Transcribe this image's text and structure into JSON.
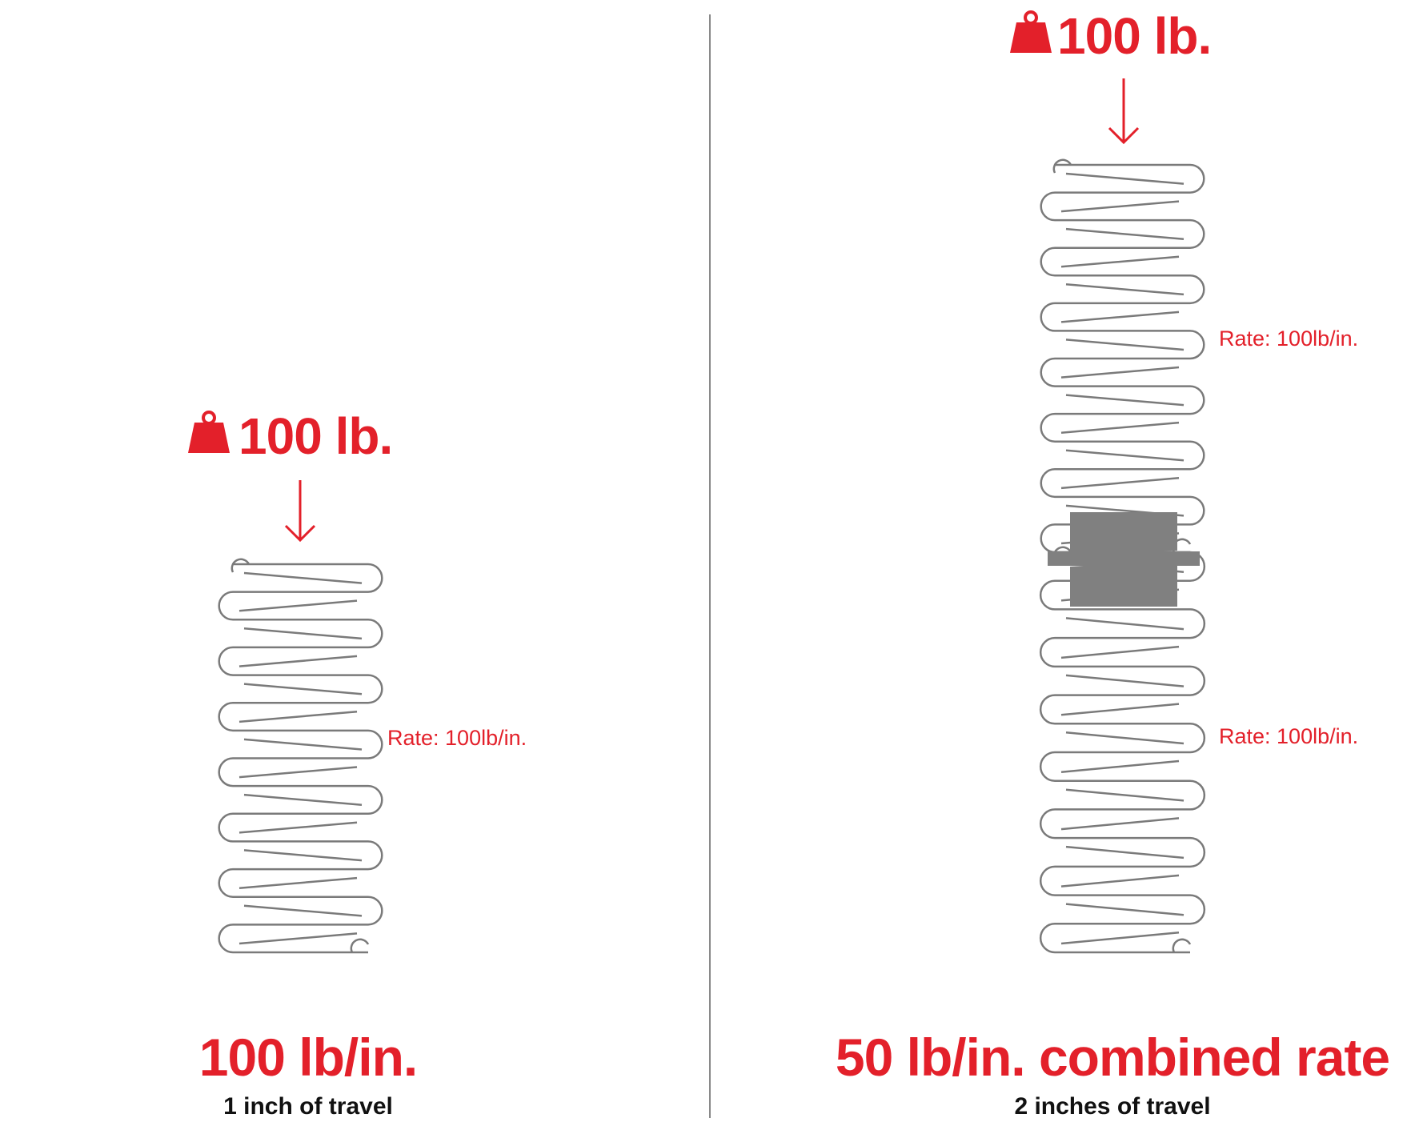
{
  "left": {
    "weight_label": "100 lb.",
    "spring_rate_label": "Rate: 100lb/in.",
    "result_rate": "100 lb/in.",
    "result_travel": "1 inch of travel"
  },
  "right": {
    "weight_label": "100 lb.",
    "spring_rate_label_top": "Rate: 100lb/in.",
    "spring_rate_label_bottom": "Rate: 100lb/in.",
    "result_rate": "50 lb/in. combined rate",
    "result_travel": "2 inches of travel"
  },
  "icons": {
    "weight": "weight-icon",
    "arrow": "arrow-down-icon",
    "spring": "coil-spring-icon",
    "coupler": "spring-coupler-icon"
  },
  "colors": {
    "accent": "#e3202a",
    "spring_stroke": "#7a7a7a",
    "coupler": "#808080",
    "text_dark": "#111111"
  }
}
